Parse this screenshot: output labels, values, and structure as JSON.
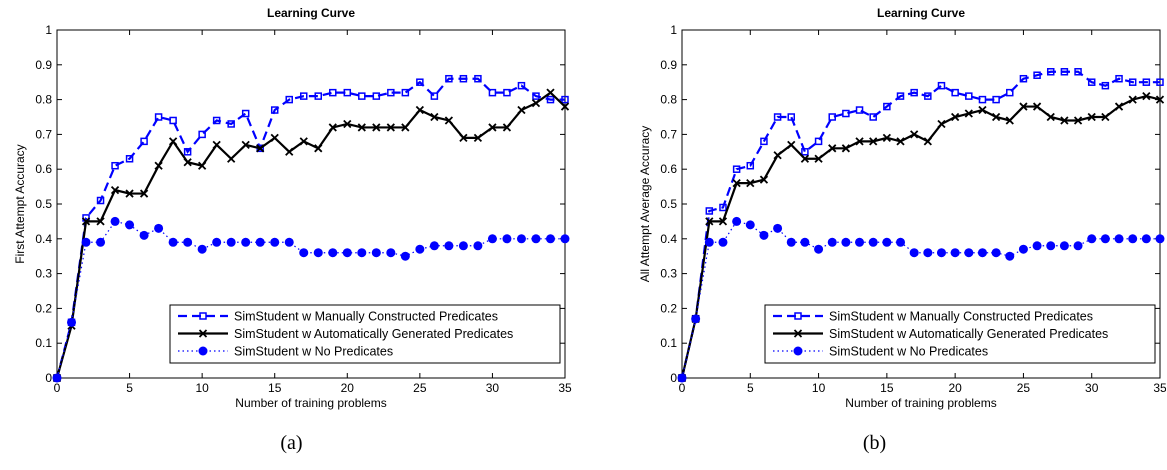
{
  "chart_data": [
    {
      "type": "line",
      "title": "Learning Curve",
      "xlabel": "Number of training problems",
      "ylabel": "First Attempt Accuracy",
      "xlim": [
        0,
        35
      ],
      "ylim": [
        0,
        1
      ],
      "xticks": [
        "0",
        "5",
        "10",
        "15",
        "20",
        "25",
        "30",
        "35"
      ],
      "yticks": [
        "0",
        "0.1",
        "0.2",
        "0.3",
        "0.4",
        "0.5",
        "0.6",
        "0.7",
        "0.8",
        "0.9",
        "1"
      ],
      "grid": false,
      "legend_position": "bottom-right",
      "x": [
        0,
        1,
        2,
        3,
        4,
        5,
        6,
        7,
        8,
        9,
        10,
        11,
        12,
        13,
        14,
        15,
        16,
        17,
        18,
        19,
        20,
        21,
        22,
        23,
        24,
        25,
        26,
        27,
        28,
        29,
        30,
        31,
        32,
        33,
        34,
        35
      ],
      "series": [
        {
          "name": "SimStudent w Manually Constructed Predicates",
          "color": "#0000ff",
          "style": "dashed",
          "marker": "square",
          "values": [
            0,
            0.16,
            0.46,
            0.51,
            0.61,
            0.63,
            0.68,
            0.75,
            0.74,
            0.65,
            0.7,
            0.74,
            0.73,
            0.76,
            0.66,
            0.77,
            0.8,
            0.81,
            0.81,
            0.82,
            0.82,
            0.81,
            0.81,
            0.82,
            0.82,
            0.85,
            0.81,
            0.86,
            0.86,
            0.86,
            0.82,
            0.82,
            0.84,
            0.81,
            0.8,
            0.8
          ]
        },
        {
          "name": "SimStudent w Automatically Generated Predicates",
          "color": "#000000",
          "style": "solid",
          "marker": "x",
          "values": [
            0,
            0.15,
            0.45,
            0.45,
            0.54,
            0.53,
            0.53,
            0.61,
            0.68,
            0.62,
            0.61,
            0.67,
            0.63,
            0.67,
            0.66,
            0.69,
            0.65,
            0.68,
            0.66,
            0.72,
            0.73,
            0.72,
            0.72,
            0.72,
            0.72,
            0.77,
            0.75,
            0.74,
            0.69,
            0.69,
            0.72,
            0.72,
            0.77,
            0.79,
            0.82,
            0.78
          ]
        },
        {
          "name": "SimStudent w No Predicates",
          "color": "#0000ff",
          "style": "dotted",
          "marker": "dot",
          "values": [
            0,
            0.16,
            0.39,
            0.39,
            0.45,
            0.44,
            0.41,
            0.43,
            0.39,
            0.39,
            0.37,
            0.39,
            0.39,
            0.39,
            0.39,
            0.39,
            0.39,
            0.36,
            0.36,
            0.36,
            0.36,
            0.36,
            0.36,
            0.36,
            0.35,
            0.37,
            0.38,
            0.38,
            0.38,
            0.38,
            0.4,
            0.4,
            0.4,
            0.4,
            0.4,
            0.4
          ]
        }
      ]
    },
    {
      "type": "line",
      "title": "Learning Curve",
      "xlabel": "Number of training problems",
      "ylabel": "All Attempt Average Accuracy",
      "xlim": [
        0,
        35
      ],
      "ylim": [
        0,
        1
      ],
      "xticks": [
        "0",
        "5",
        "10",
        "15",
        "20",
        "25",
        "30",
        "35"
      ],
      "yticks": [
        "0",
        "0.1",
        "0.2",
        "0.3",
        "0.4",
        "0.5",
        "0.6",
        "0.7",
        "0.8",
        "0.9",
        "1"
      ],
      "grid": false,
      "legend_position": "bottom-right",
      "x": [
        0,
        1,
        2,
        3,
        4,
        5,
        6,
        7,
        8,
        9,
        10,
        11,
        12,
        13,
        14,
        15,
        16,
        17,
        18,
        19,
        20,
        21,
        22,
        23,
        24,
        25,
        26,
        27,
        28,
        29,
        30,
        31,
        32,
        33,
        34,
        35
      ],
      "series": [
        {
          "name": "SimStudent w Manually Constructed Predicates",
          "color": "#0000ff",
          "style": "dashed",
          "marker": "square",
          "values": [
            0,
            0.17,
            0.48,
            0.49,
            0.6,
            0.61,
            0.68,
            0.75,
            0.75,
            0.65,
            0.68,
            0.75,
            0.76,
            0.77,
            0.75,
            0.78,
            0.81,
            0.82,
            0.81,
            0.84,
            0.82,
            0.81,
            0.8,
            0.8,
            0.82,
            0.86,
            0.87,
            0.88,
            0.88,
            0.88,
            0.85,
            0.84,
            0.86,
            0.85,
            0.85,
            0.85
          ]
        },
        {
          "name": "SimStudent w Automatically Generated Predicates",
          "color": "#000000",
          "style": "solid",
          "marker": "x",
          "values": [
            0,
            0.17,
            0.45,
            0.45,
            0.56,
            0.56,
            0.57,
            0.64,
            0.67,
            0.63,
            0.63,
            0.66,
            0.66,
            0.68,
            0.68,
            0.69,
            0.68,
            0.7,
            0.68,
            0.73,
            0.75,
            0.76,
            0.77,
            0.75,
            0.74,
            0.78,
            0.78,
            0.75,
            0.74,
            0.74,
            0.75,
            0.75,
            0.78,
            0.8,
            0.81,
            0.8
          ]
        },
        {
          "name": "SimStudent w No Predicates",
          "color": "#0000ff",
          "style": "dotted",
          "marker": "dot",
          "values": [
            0,
            0.17,
            0.39,
            0.39,
            0.45,
            0.44,
            0.41,
            0.43,
            0.39,
            0.39,
            0.37,
            0.39,
            0.39,
            0.39,
            0.39,
            0.39,
            0.39,
            0.36,
            0.36,
            0.36,
            0.36,
            0.36,
            0.36,
            0.36,
            0.35,
            0.37,
            0.38,
            0.38,
            0.38,
            0.38,
            0.4,
            0.4,
            0.4,
            0.4,
            0.4,
            0.4
          ]
        }
      ]
    }
  ],
  "captions": [
    "(a)",
    "(b)"
  ]
}
